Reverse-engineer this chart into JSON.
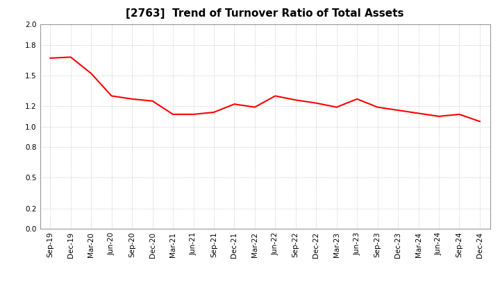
{
  "title": "[2763]  Trend of Turnover Ratio of Total Assets",
  "x_labels": [
    "Sep-19",
    "Dec-19",
    "Mar-20",
    "Jun-20",
    "Sep-20",
    "Dec-20",
    "Mar-21",
    "Jun-21",
    "Sep-21",
    "Dec-21",
    "Mar-22",
    "Jun-22",
    "Sep-22",
    "Dec-22",
    "Mar-23",
    "Jun-23",
    "Sep-23",
    "Dec-23",
    "Mar-24",
    "Jun-24",
    "Sep-24",
    "Dec-24"
  ],
  "y_values": [
    1.67,
    1.68,
    1.52,
    1.3,
    1.27,
    1.25,
    1.12,
    1.12,
    1.14,
    1.22,
    1.19,
    1.3,
    1.26,
    1.23,
    1.19,
    1.27,
    1.19,
    1.16,
    1.13,
    1.1,
    1.12,
    1.05
  ],
  "ylim": [
    0.0,
    2.0
  ],
  "yticks": [
    0.0,
    0.2,
    0.5,
    0.8,
    1.0,
    1.2,
    1.5,
    1.8,
    2.0
  ],
  "line_color": "#ff0000",
  "line_width": 1.5,
  "background_color": "#ffffff",
  "plot_bg_color": "#ffffff",
  "grid_color": "#bbbbbb",
  "title_fontsize": 11,
  "tick_fontsize": 7.5
}
